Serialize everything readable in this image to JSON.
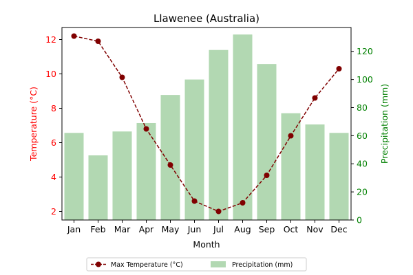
{
  "chart_data": {
    "type": "bar+line",
    "title": "Llawenee (Australia)",
    "xlabel": "Month",
    "ylabel_left": "Temperature (°C)",
    "ylabel_right": "Precipitation (mm)",
    "categories": [
      "Jan",
      "Feb",
      "Mar",
      "Apr",
      "May",
      "Jun",
      "Jul",
      "Aug",
      "Sep",
      "Oct",
      "Nov",
      "Dec"
    ],
    "y_left_lim": [
      1.5,
      12.7
    ],
    "y_left_ticks": [
      2,
      4,
      6,
      8,
      10,
      12
    ],
    "y_right_lim": [
      0,
      137
    ],
    "y_right_ticks": [
      0,
      20,
      40,
      60,
      80,
      100,
      120
    ],
    "grid": false,
    "legend_placement": "bottom-center",
    "series": [
      {
        "name": "Max Temperature (°C)",
        "type": "line",
        "axis": "left",
        "color": "#800000",
        "values": [
          12.2,
          11.9,
          9.8,
          6.8,
          4.7,
          2.6,
          2.0,
          2.5,
          4.1,
          6.4,
          8.6,
          10.3
        ]
      },
      {
        "name": "Precipitation (mm)",
        "type": "bar",
        "axis": "right",
        "color": "#b2d8b2",
        "values": [
          62,
          46,
          63,
          69,
          89,
          100,
          121,
          132,
          111,
          76,
          68,
          62
        ]
      }
    ],
    "colors": {
      "left_axis": "#ff0000",
      "right_axis": "#008000",
      "text": "#000000"
    }
  }
}
